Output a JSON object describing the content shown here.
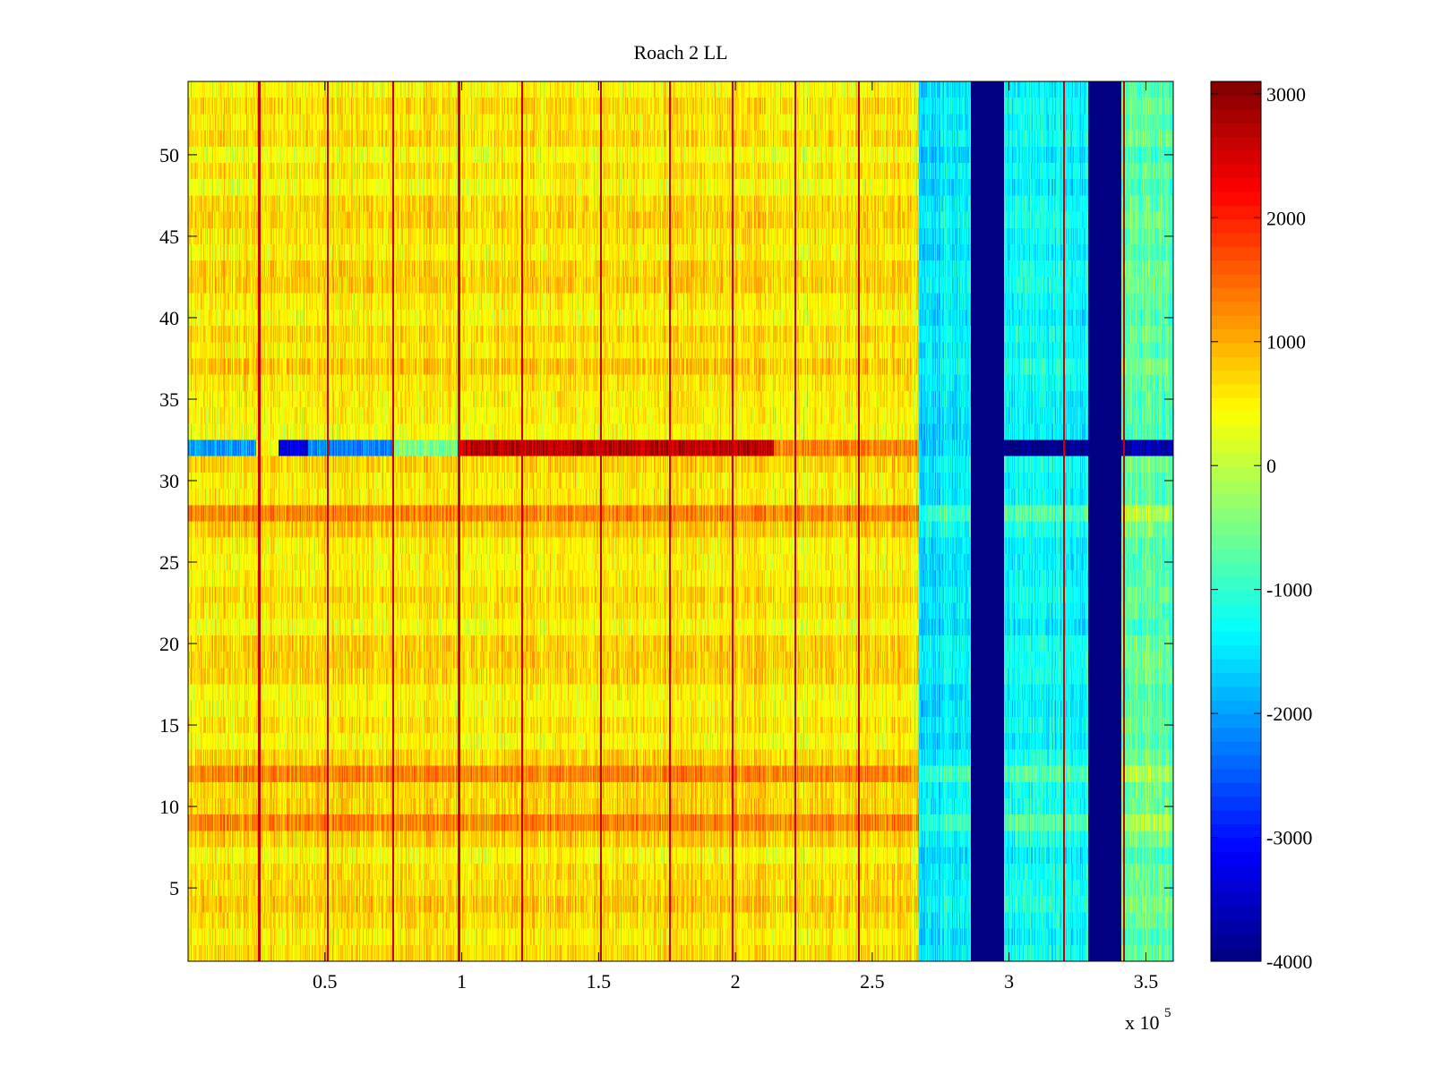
{
  "chart_data": {
    "type": "heatmap",
    "title": "Roach 2 LL",
    "xlabel": "",
    "ylabel": "",
    "x_multiplier_label": "x 10",
    "x_multiplier_exponent": "5",
    "xlim": [
      0,
      3.6
    ],
    "ylim": [
      0.5,
      54.5
    ],
    "x_ticks": [
      0.5,
      1,
      1.5,
      2,
      2.5,
      3,
      3.5
    ],
    "x_tick_labels": [
      "0.5",
      "1",
      "1.5",
      "2",
      "2.5",
      "3",
      "3.5"
    ],
    "y_ticks": [
      5,
      10,
      15,
      20,
      25,
      30,
      35,
      40,
      45,
      50
    ],
    "y_tick_labels": [
      "5",
      "10",
      "15",
      "20",
      "25",
      "30",
      "35",
      "40",
      "45",
      "50"
    ],
    "colorbar": {
      "colormap": "jet",
      "clim": [
        -4000,
        3100
      ],
      "ticks": [
        -4000,
        -3000,
        -2000,
        -1000,
        0,
        1000,
        2000,
        3000
      ],
      "tick_labels": [
        "-4000",
        "-3000",
        "-2000",
        "-1000",
        "0",
        "1000",
        "2000",
        "3000"
      ]
    },
    "rows": 54,
    "regions": [
      {
        "x_range": [
          0,
          2.67
        ],
        "rows": "all",
        "value_mean": 600,
        "note": "yellow-orange noise background"
      },
      {
        "x_range": [
          2.67,
          2.86
        ],
        "rows": "all",
        "value_mean": -1500
      },
      {
        "x_range": [
          2.86,
          2.98
        ],
        "rows": "all",
        "value_mean": -4000
      },
      {
        "x_range": [
          2.98,
          3.29
        ],
        "rows": "all",
        "value_mean": -1300
      },
      {
        "x_range": [
          3.29,
          3.41
        ],
        "rows": "all",
        "value_mean": -4000
      },
      {
        "x_range": [
          3.41,
          3.6
        ],
        "rows": "all",
        "value_mean": -700
      }
    ],
    "row_32_segments": [
      {
        "x_range": [
          0,
          0.25
        ],
        "value_mean": -2000
      },
      {
        "x_range": [
          0.25,
          0.33
        ],
        "value_mean": 300
      },
      {
        "x_range": [
          0.33,
          0.44
        ],
        "value_mean": -3300
      },
      {
        "x_range": [
          0.44,
          0.75
        ],
        "value_mean": -2200
      },
      {
        "x_range": [
          0.75,
          0.99
        ],
        "value_mean": -500
      },
      {
        "x_range": [
          0.99,
          2.14
        ],
        "value_mean": 2700
      },
      {
        "x_range": [
          2.14,
          2.67
        ],
        "value_mean": 1300
      },
      {
        "x_range": [
          2.98,
          3.29
        ],
        "value_mean": -4000
      },
      {
        "x_range": [
          3.41,
          3.6
        ],
        "value_mean": -3700
      }
    ],
    "hot_rows": [
      28,
      9,
      12
    ],
    "vertical_red_lines_x": [
      0.26,
      0.51,
      0.75,
      0.99,
      1.22,
      1.51,
      1.76,
      1.99,
      2.22,
      2.45,
      3.2,
      3.42
    ],
    "vertical_line_value": 2600
  }
}
